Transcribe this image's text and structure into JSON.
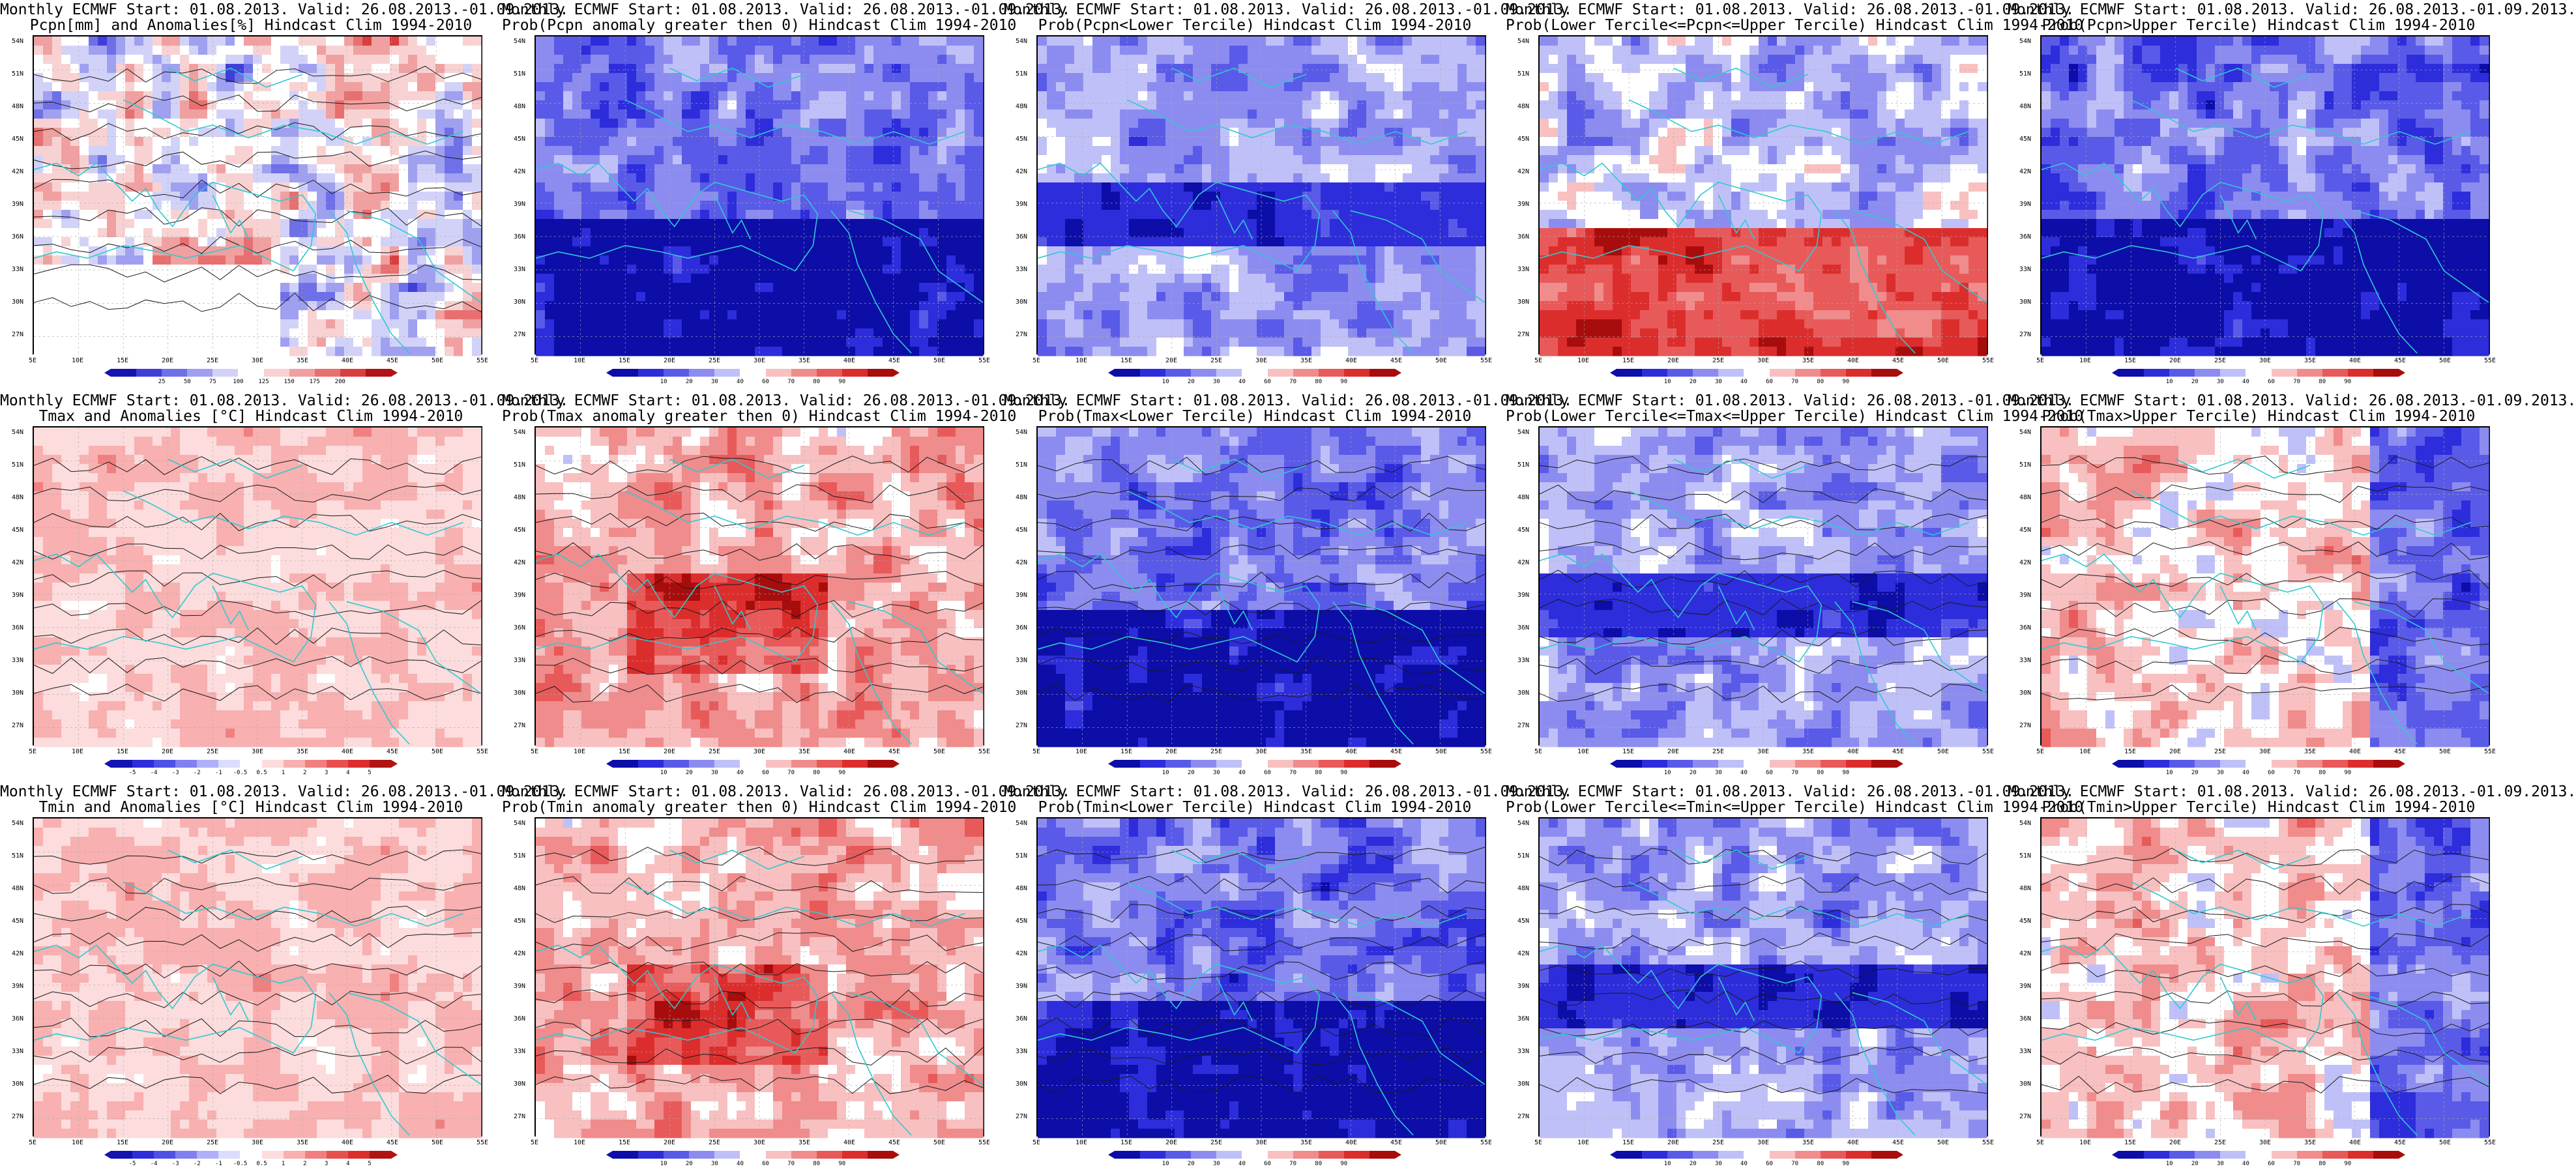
{
  "page": {
    "background": "#ffffff"
  },
  "colors": {
    "coast": "#2fc9d0",
    "contour": "#1a1a1a",
    "grid": "#aaaaaa"
  },
  "lat_labels": [
    "54N",
    "51N",
    "48N",
    "45N",
    "42N",
    "39N",
    "36N",
    "33N",
    "30N",
    "27N"
  ],
  "lon_labels": [
    "5E",
    "10E",
    "15E",
    "20E",
    "25E",
    "30E",
    "35E",
    "40E",
    "45E",
    "50E",
    "55E"
  ],
  "scales": {
    "pcpn": {
      "colors": [
        "#1414b0",
        "#3f3fd8",
        "#6f6fe8",
        "#a0a0f0",
        "#d2d2f8",
        "#ffffff",
        "#f8d2d2",
        "#f0a0a0",
        "#e86f6f",
        "#d83f3f",
        "#b01414"
      ],
      "labels": [
        "25",
        "50",
        "75",
        "100",
        "125",
        "150",
        "175",
        "200"
      ]
    },
    "prob": {
      "colors": [
        "#0d0da8",
        "#2d2ddc",
        "#5a5ae8",
        "#8c8cf0",
        "#c0c0f8",
        "#ffffff",
        "#f8c0c0",
        "#f08c8c",
        "#e85a5a",
        "#dc2d2d",
        "#a80d0d"
      ],
      "labels": [
        "10",
        "20",
        "30",
        "40",
        "60",
        "70",
        "80",
        "90"
      ]
    },
    "anom": {
      "colors": [
        "#1414b0",
        "#2d2ddc",
        "#5050e8",
        "#8080f0",
        "#b0b0f8",
        "#dcdcfc",
        "#ffffff",
        "#fcdcdc",
        "#f8b0b0",
        "#f08080",
        "#e85050",
        "#dc2d2d",
        "#b01414"
      ],
      "labels": [
        "-5",
        "-4",
        "-3",
        "-2",
        "-1",
        "-0.5",
        "0.5",
        "1",
        "2",
        "3",
        "4",
        "5"
      ]
    }
  },
  "panels": [
    {
      "title1": "Monthly ECMWF Start: 01.08.2013. Valid: 26.08.2013.-01.09.2013.",
      "title2": "Pcpn[mm] and Anomalies[%] Hindcast Clim 1994-2010",
      "scale": "pcpn",
      "style": "pcpn",
      "seed": 11
    },
    {
      "title1": "Monthly ECMWF Start: 01.08.2013. Valid: 26.08.2013.-01.09.2013.",
      "title2": "Prob(Pcpn anomaly greater then 0) Hindcast Clim 1994-2010",
      "scale": "prob",
      "style": "cold",
      "seed": 12
    },
    {
      "title1": "Monthly ECMWF Start: 01.08.2013. Valid: 26.08.2013.-01.09.2013.",
      "title2": "Prob(Pcpn<Lower Tercile) Hindcast Clim 1994-2010",
      "scale": "prob",
      "style": "coldwhite",
      "seed": 13
    },
    {
      "title1": "Monthly ECMWF Start: 01.08.2013. Valid: 26.08.2013.-01.09.2013.",
      "title2": "Prob(Lower Tercile<=Pcpn<=Upper Tercile) Hindcast Clim 1994-2010",
      "scale": "prob",
      "style": "warmsouth",
      "seed": 14
    },
    {
      "title1": "Monthly ECMWF Start: 01.08.2013. Valid: 26.08.2013.-01.09.2013.",
      "title2": "Prob(Pcpn>Upper Tercile) Hindcast Clim 1994-2010",
      "scale": "prob",
      "style": "cold",
      "seed": 15
    },
    {
      "title1": "Monthly ECMWF Start: 01.08.2013. Valid: 26.08.2013.-01.09.2013.",
      "title2": "Tmax and Anomalies [°C] Hindcast Clim 1994-2010",
      "scale": "anom",
      "style": "lightwarm",
      "seed": 21
    },
    {
      "title1": "Monthly ECMWF Start: 01.08.2013. Valid: 26.08.2013.-01.09.2013.",
      "title2": "Prob(Tmax anomaly greater then 0) Hindcast Clim 1994-2010",
      "scale": "prob",
      "style": "warm",
      "seed": 22
    },
    {
      "title1": "Monthly ECMWF Start: 01.08.2013. Valid: 26.08.2013.-01.09.2013.",
      "title2": "Prob(Tmax<Lower Tercile) Hindcast Clim 1994-2010",
      "scale": "prob",
      "style": "cold",
      "seed": 23
    },
    {
      "title1": "Monthly ECMWF Start: 01.08.2013. Valid: 26.08.2013.-01.09.2013.",
      "title2": "Prob(Lower Tercile<=Tmax<=Upper Tercile) Hindcast Clim 1994-2010",
      "scale": "prob",
      "style": "coldwhite",
      "seed": 24
    },
    {
      "title1": "Monthly ECMWF Start: 01.08.2013. Valid: 26.08.2013.-01.09.2013.",
      "title2": "Prob(Tmax>Upper Tercile) Hindcast Clim 1994-2010",
      "scale": "prob",
      "style": "mixed",
      "seed": 25
    },
    {
      "title1": "Monthly ECMWF Start: 01.08.2013. Valid: 26.08.2013.-01.09.2013.",
      "title2": "Tmin and Anomalies [°C] Hindcast Clim 1994-2010",
      "scale": "anom",
      "style": "lightwarm",
      "seed": 31
    },
    {
      "title1": "Monthly ECMWF Start: 01.08.2013. Valid: 26.08.2013.-01.09.2013.",
      "title2": "Prob(Tmin anomaly greater then 0) Hindcast Clim 1994-2010",
      "scale": "prob",
      "style": "warm",
      "seed": 32
    },
    {
      "title1": "Monthly ECMWF Start: 01.08.2013. Valid: 26.08.2013.-01.09.2013.",
      "title2": "Prob(Tmin<Lower Tercile) Hindcast Clim 1994-2010",
      "scale": "prob",
      "style": "cold",
      "seed": 33
    },
    {
      "title1": "Monthly ECMWF Start: 01.08.2013. Valid: 26.08.2013.-01.09.2013.",
      "title2": "Prob(Lower Tercile<=Tmin<=Upper Tercile) Hindcast Clim 1994-2010",
      "scale": "prob",
      "style": "coldwhite",
      "seed": 34
    },
    {
      "title1": "Monthly ECMWF Start: 01.08.2013. Valid: 26.08.2013.-01.09.2013.",
      "title2": "Prob(Tmin>Upper Tercile) Hindcast Clim 1994-2010",
      "scale": "prob",
      "style": "mixed",
      "seed": 35
    }
  ]
}
